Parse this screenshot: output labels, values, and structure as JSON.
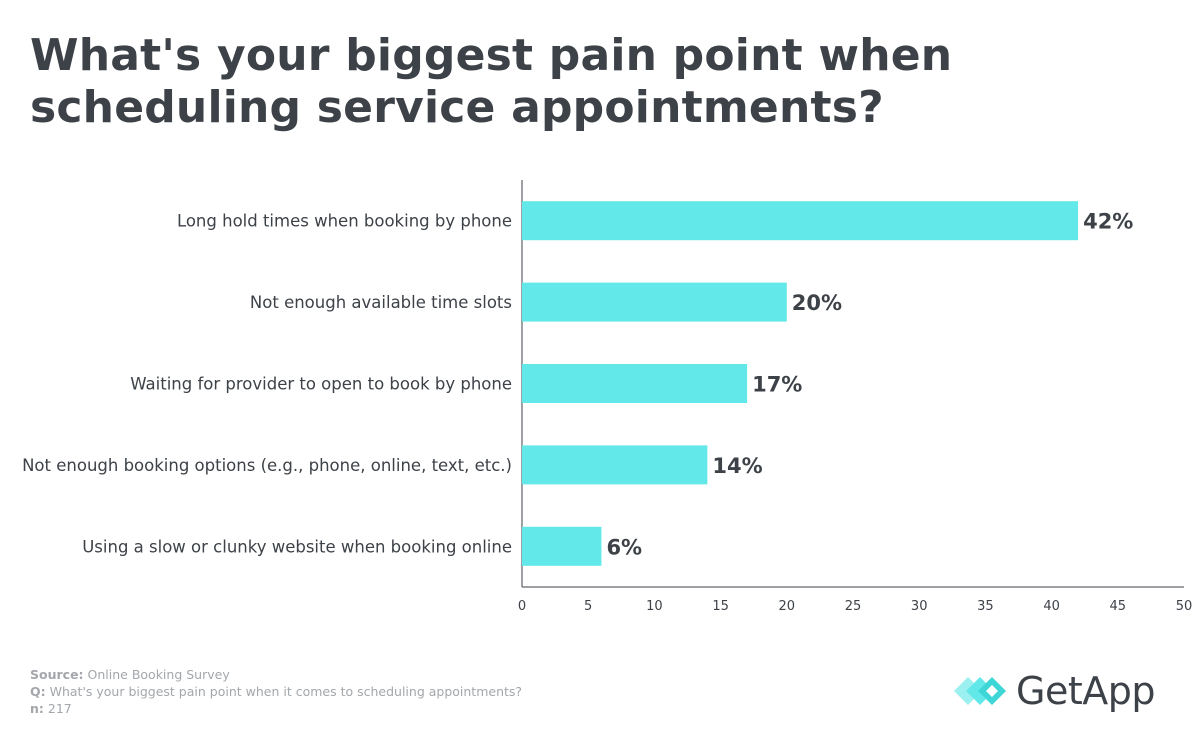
{
  "title": "What's your biggest pain point when scheduling service appointments?",
  "chart_data": {
    "type": "bar",
    "orientation": "horizontal",
    "categories": [
      "Long hold times when booking by phone",
      "Not enough available time slots",
      "Waiting for provider to open to book by phone",
      "Not enough booking options (e.g., phone, online, text, etc.)",
      "Using a slow or clunky website when booking online"
    ],
    "values": [
      42,
      20,
      17,
      14,
      6
    ],
    "value_labels": [
      "42%",
      "20%",
      "17%",
      "14%",
      "6%"
    ],
    "xlim": [
      0,
      50
    ],
    "xticks": [
      0,
      5,
      10,
      15,
      20,
      25,
      30,
      35,
      40,
      45,
      50
    ],
    "bar_color": "#62e8e8",
    "grid": false
  },
  "footer": {
    "source_label": "Source:",
    "source_value": "Online Booking Survey",
    "q_label": "Q:",
    "q_value": "What's your biggest pain point when it comes to scheduling appointments?",
    "n_label": "n:",
    "n_value": "217"
  },
  "logo": {
    "text": "GetApp",
    "icon": "getapp-chevron-logo-icon"
  }
}
